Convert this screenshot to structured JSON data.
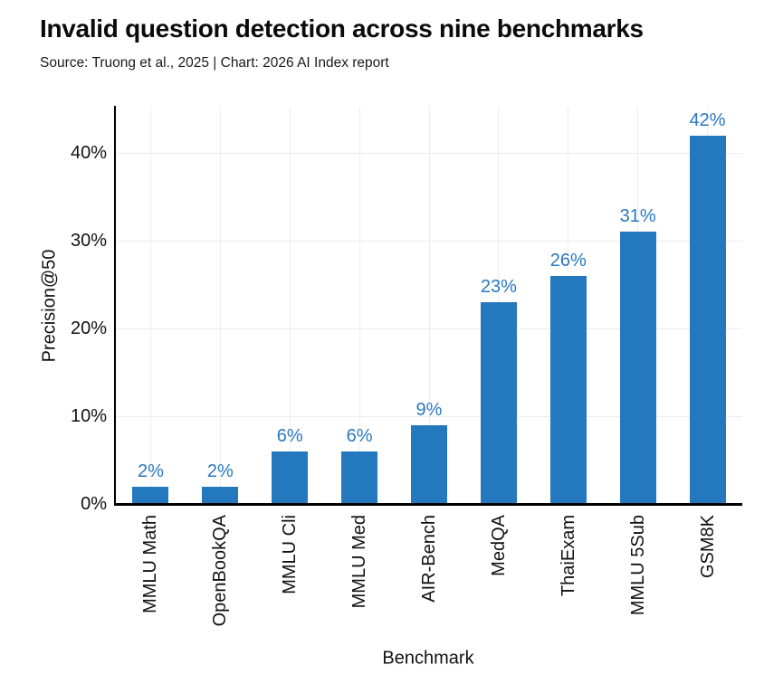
{
  "chart_data": {
    "type": "bar",
    "title": "Invalid question detection across nine benchmarks",
    "subtitle": "Source: Truong et al., 2025 | Chart: 2026 AI Index report",
    "xlabel": "Benchmark",
    "ylabel": "Precision@50",
    "categories": [
      "MMLU Math",
      "OpenBookQA",
      "MMLU Cli",
      "MMLU Med",
      "AIR-Bench",
      "MedQA",
      "ThaiExam",
      "MMLU 5Sub",
      "GSM8K"
    ],
    "values": [
      2,
      2,
      6,
      6,
      9,
      23,
      26,
      31,
      42
    ],
    "value_labels": [
      "2%",
      "2%",
      "6%",
      "6%",
      "9%",
      "23%",
      "26%",
      "31%",
      "42%"
    ],
    "y_ticks": [
      0,
      10,
      20,
      30,
      40
    ],
    "y_tick_labels": [
      "0%",
      "10%",
      "20%",
      "30%",
      "40%"
    ],
    "ylim": [
      0,
      45.3
    ],
    "grid": "light gray horizontal lines at each y tick and vertical lines at each category center",
    "legend": "none",
    "bar_color": "#2478bd",
    "value_label_color": "#2878c2",
    "axis_color": "#000000"
  }
}
